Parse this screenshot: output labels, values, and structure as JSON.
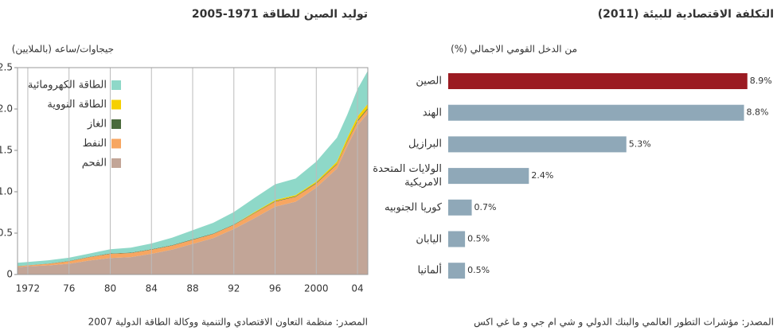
{
  "chart_data": [
    {
      "type": "area",
      "stacked": true,
      "title": "توليد الصين للطاقة 1971-2005",
      "ylabel": "جيجاوات/ساعه (بالملايين)",
      "source": "المصدر: منظمة التعاون الاقتصادي والتنمية ووكالة الطاقة الدولية 2007",
      "x": [
        1971,
        1972,
        1974,
        1976,
        1978,
        1980,
        1982,
        1984,
        1986,
        1988,
        1990,
        1992,
        1994,
        1996,
        1998,
        2000,
        2002,
        2003,
        2004,
        2005
      ],
      "series": [
        {
          "name": "الفحم",
          "color": "#c2a597",
          "values": [
            0.09,
            0.1,
            0.11,
            0.13,
            0.17,
            0.2,
            0.21,
            0.25,
            0.3,
            0.37,
            0.44,
            0.55,
            0.68,
            0.82,
            0.88,
            1.05,
            1.28,
            1.55,
            1.8,
            1.95
          ]
        },
        {
          "name": "النفط",
          "color": "#f7a661",
          "values": [
            0.01,
            0.01,
            0.02,
            0.03,
            0.04,
            0.05,
            0.05,
            0.05,
            0.05,
            0.05,
            0.05,
            0.05,
            0.06,
            0.06,
            0.06,
            0.05,
            0.05,
            0.05,
            0.05,
            0.05
          ]
        },
        {
          "name": "الغاز",
          "color": "#4a6a3c",
          "values": [
            0.002,
            0.002,
            0.002,
            0.003,
            0.004,
            0.005,
            0.005,
            0.005,
            0.005,
            0.005,
            0.005,
            0.005,
            0.005,
            0.006,
            0.006,
            0.007,
            0.008,
            0.009,
            0.01,
            0.012
          ]
        },
        {
          "name": "الطاقة النووية",
          "color": "#f5d000",
          "values": [
            0,
            0,
            0,
            0,
            0,
            0,
            0,
            0,
            0,
            0,
            0,
            0,
            0.01,
            0.014,
            0.014,
            0.017,
            0.025,
            0.04,
            0.05,
            0.05
          ]
        },
        {
          "name": "الطاقة الكهرومائية",
          "color": "#8ed8c8",
          "values": [
            0.04,
            0.04,
            0.04,
            0.04,
            0.04,
            0.05,
            0.06,
            0.07,
            0.09,
            0.11,
            0.13,
            0.15,
            0.17,
            0.19,
            0.2,
            0.24,
            0.29,
            0.28,
            0.33,
            0.4
          ]
        }
      ],
      "xlim": [
        1971,
        2005
      ],
      "xticks": [
        1972,
        {
          "value": 1976,
          "label": "76"
        },
        {
          "value": 1980,
          "label": "80"
        },
        {
          "value": 1984,
          "label": "84"
        },
        {
          "value": 1988,
          "label": "88"
        },
        {
          "value": 1992,
          "label": "92"
        },
        {
          "value": 1996,
          "label": "96"
        },
        2000,
        {
          "value": 2004,
          "label": "04"
        }
      ],
      "ylim": [
        0,
        2.5
      ],
      "yticks": [
        0,
        0.5,
        {
          "value": 1,
          "label": "1.0"
        },
        1.5,
        {
          "value": 2,
          "label": "2.0"
        },
        2.5
      ],
      "grid": "x",
      "legend": "top-left"
    },
    {
      "type": "bar",
      "orientation": "horizontal",
      "title": "التكلفة الاقتصادية  للبيئة (2011)",
      "subtitle": "(%) من الدخل القومي الاجمالي",
      "source": "المصدر: مؤشرات التطور العالمي والبنك الدولي و شي ام جي و ما غي اكس",
      "categories": [
        "الصين",
        "الهند",
        "البرازيل",
        "الولايات المتحدة\nالامريكية",
        "كوريا الجنوبيه",
        "اليابان",
        "ألمانيا"
      ],
      "values": [
        8.9,
        8.8,
        5.3,
        2.4,
        0.7,
        0.5,
        0.5
      ],
      "value_labels": [
        "8.9%",
        "8.8%",
        "5.3%",
        "2.4%",
        "0.7%",
        "0.5%",
        "0.5%"
      ],
      "colors": [
        "#9b1b22",
        "#8fa8b8",
        "#8fa8b8",
        "#8fa8b8",
        "#8fa8b8",
        "#8fa8b8",
        "#8fa8b8"
      ],
      "xlim": [
        0,
        9
      ]
    }
  ]
}
